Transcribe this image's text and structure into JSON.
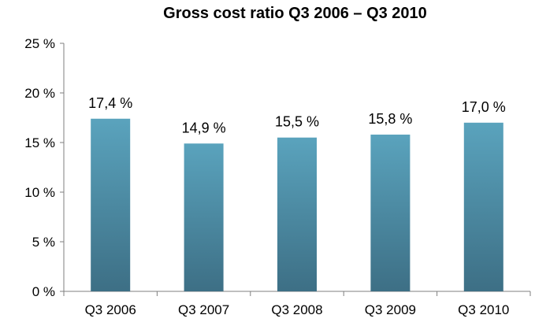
{
  "chart_data": {
    "type": "bar",
    "title": "Gross cost ratio Q3 2006 – Q3 2010",
    "xlabel": "",
    "ylabel": "",
    "categories": [
      "Q3 2006",
      "Q3 2007",
      "Q3 2008",
      "Q3 2009",
      "Q3 2010"
    ],
    "values": [
      17.4,
      14.9,
      15.5,
      15.8,
      17.0
    ],
    "data_labels": [
      "17,4 %",
      "14,9 %",
      "15,5 %",
      "15,8 %",
      "17,0 %"
    ],
    "ylim": [
      0,
      25
    ],
    "y_ticks": [
      0,
      5,
      10,
      15,
      20,
      25
    ],
    "y_tick_labels": [
      "0 %",
      "5 %",
      "10 %",
      "15 %",
      "20 %",
      "25 %"
    ],
    "grid": false,
    "legend": "none",
    "bar_color_top": "#5aa3bd",
    "bar_color_bottom": "#3d6f85"
  }
}
